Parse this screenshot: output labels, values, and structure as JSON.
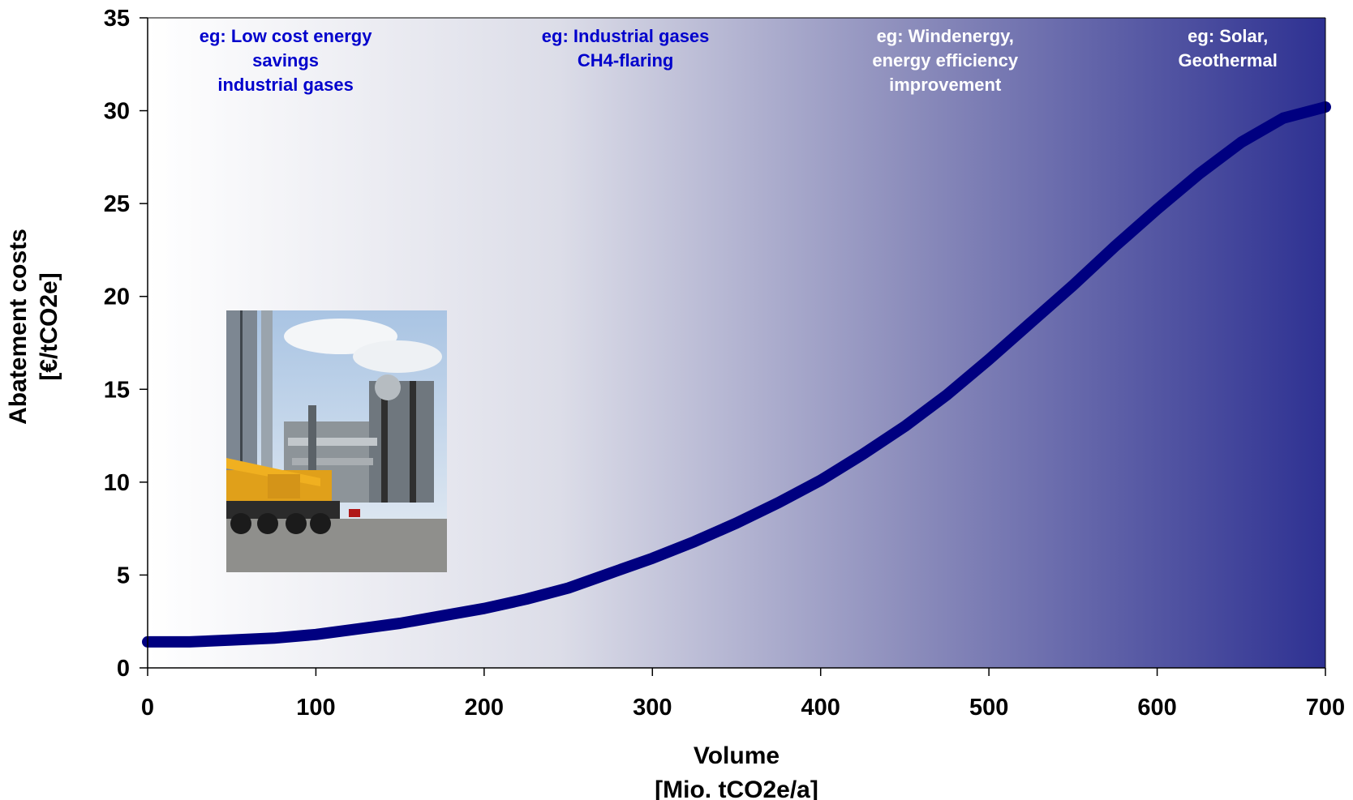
{
  "chart_data": {
    "type": "line",
    "title": "",
    "xlabel": [
      "Volume",
      "[Mio. tCO2e/a]"
    ],
    "ylabel": [
      "Abatement costs",
      "[€/tCO2e]"
    ],
    "xlim": [
      0,
      700
    ],
    "ylim": [
      0,
      35
    ],
    "xticks": [
      0,
      100,
      200,
      300,
      400,
      500,
      600,
      700
    ],
    "yticks": [
      0,
      5,
      10,
      15,
      20,
      25,
      30,
      35
    ],
    "grid": false,
    "background_gradient": [
      "#ffffff",
      "#2e3192"
    ],
    "series": [
      {
        "color": "#000080",
        "x": [
          0,
          25,
          50,
          75,
          100,
          125,
          150,
          175,
          200,
          225,
          250,
          275,
          300,
          325,
          350,
          375,
          400,
          425,
          450,
          475,
          500,
          525,
          550,
          575,
          600,
          625,
          650,
          675,
          700
        ],
        "y": [
          1.4,
          1.4,
          1.5,
          1.6,
          1.8,
          2.1,
          2.4,
          2.8,
          3.2,
          3.7,
          4.3,
          5.1,
          5.9,
          6.8,
          7.8,
          8.9,
          10.1,
          11.5,
          13.0,
          14.7,
          16.6,
          18.6,
          20.6,
          22.7,
          24.7,
          26.6,
          28.3,
          29.6,
          30.2
        ]
      }
    ],
    "annotations": [
      {
        "lines": [
          "eg: Low cost energy",
          "savings",
          "industrial gases"
        ],
        "color": "#0000cc",
        "x": 82
      },
      {
        "lines": [
          "eg: Industrial gases",
          "CH4-flaring"
        ],
        "color": "#0000cc",
        "x": 284
      },
      {
        "lines": [
          "eg: Windenergy,",
          "energy efficiency",
          "improvement"
        ],
        "color": "#ffffff",
        "x": 474
      },
      {
        "lines": [
          "eg: Solar,",
          "Geothermal"
        ],
        "color": "#ffffff",
        "x": 642
      }
    ]
  },
  "photo": {
    "icon": "industrial-plant-with-crane-photo"
  }
}
